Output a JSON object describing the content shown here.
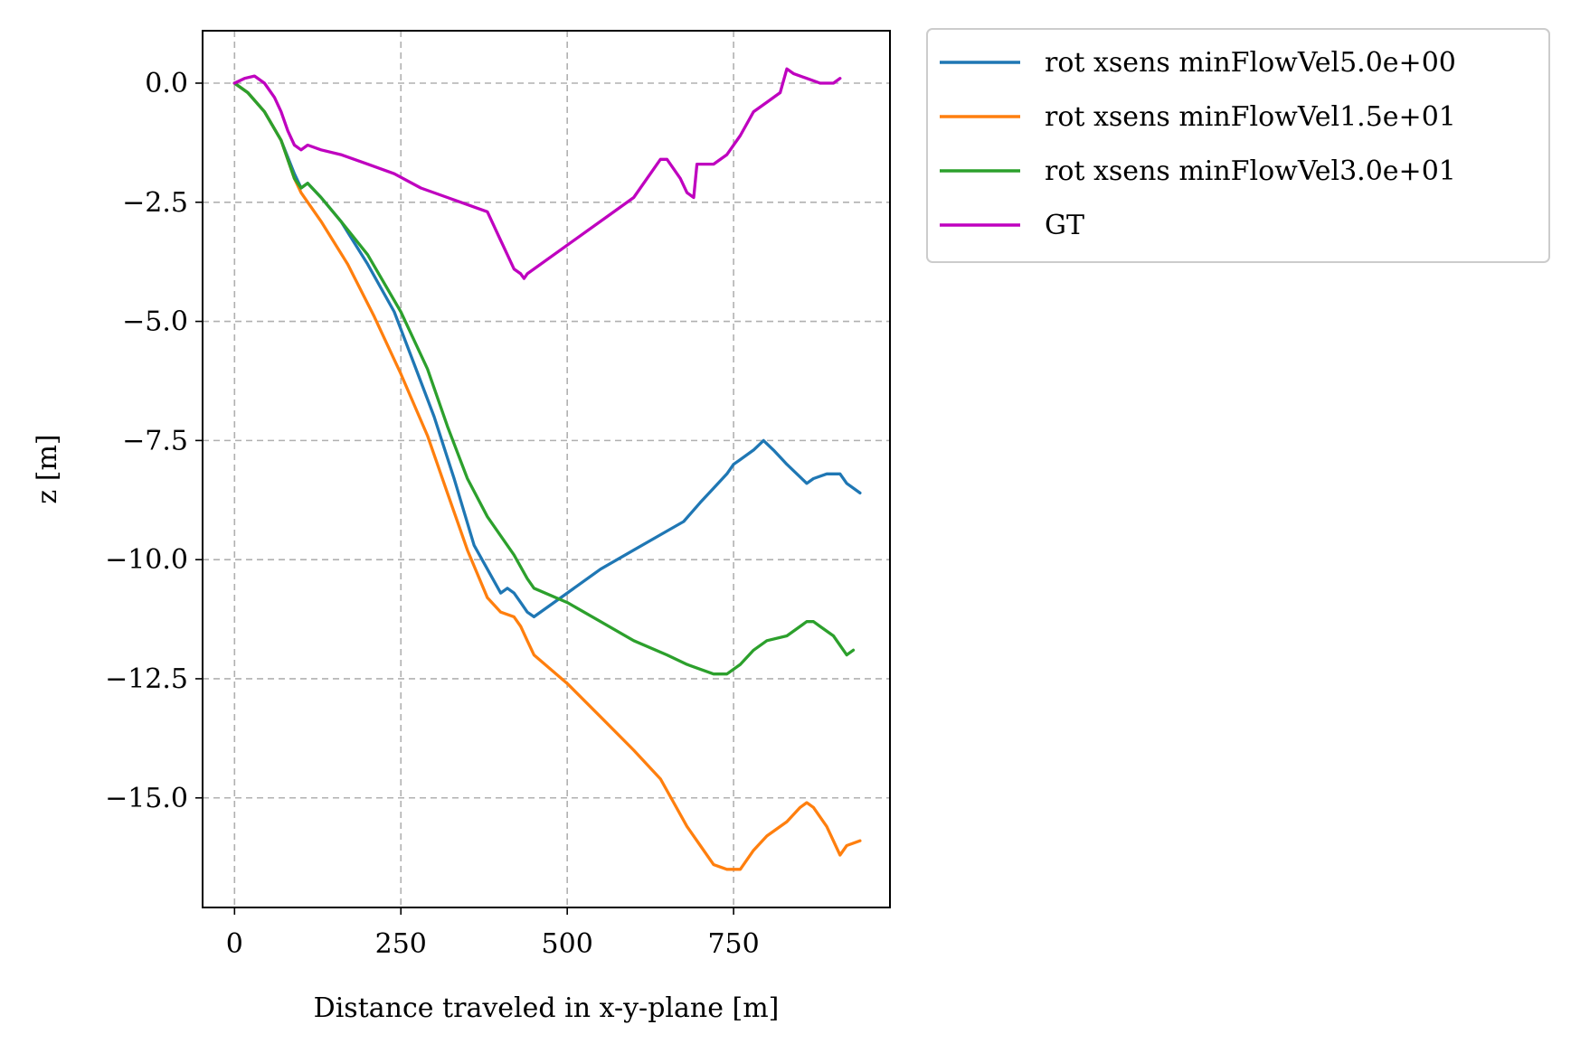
{
  "chart_data": {
    "type": "line",
    "title": "",
    "xlabel": "Distance traveled in x-y-plane [m]",
    "ylabel": "z [m]",
    "xlim": [
      -48,
      985
    ],
    "ylim": [
      -17.3,
      1.1
    ],
    "xticks": [
      0,
      250,
      500,
      750
    ],
    "xtick_labels": [
      "0",
      "250",
      "500",
      "750"
    ],
    "yticks": [
      0.0,
      -2.5,
      -5.0,
      -7.5,
      -10.0,
      -12.5,
      -15.0
    ],
    "ytick_labels": [
      "0.0",
      "−2.5",
      "−5.0",
      "−7.5",
      "−10.0",
      "−12.5",
      "−15.0"
    ],
    "grid": true,
    "legend_position": "outside-top-right",
    "series": [
      {
        "name": "rot xsens minFlowVel5.0e+00",
        "color": "#1f77b4",
        "x": [
          0,
          20,
          45,
          70,
          90,
          100,
          110,
          130,
          160,
          200,
          240,
          270,
          300,
          330,
          360,
          380,
          400,
          410,
          420,
          430,
          440,
          450,
          500,
          550,
          600,
          650,
          675,
          700,
          720,
          740,
          750,
          760,
          780,
          795,
          810,
          830,
          860,
          870,
          890,
          910,
          920,
          940
        ],
        "y": [
          0.0,
          -0.2,
          -0.6,
          -1.2,
          -1.9,
          -2.2,
          -2.1,
          -2.4,
          -2.9,
          -3.8,
          -4.8,
          -5.9,
          -7.0,
          -8.3,
          -9.7,
          -10.2,
          -10.7,
          -10.6,
          -10.7,
          -10.9,
          -11.1,
          -11.2,
          -10.7,
          -10.2,
          -9.8,
          -9.4,
          -9.2,
          -8.8,
          -8.5,
          -8.2,
          -8.0,
          -7.9,
          -7.7,
          -7.5,
          -7.7,
          -8.0,
          -8.4,
          -8.3,
          -8.2,
          -8.2,
          -8.4,
          -8.6
        ]
      },
      {
        "name": "rot xsens minFlowVel1.5e+01",
        "color": "#ff7f0e",
        "x": [
          0,
          20,
          45,
          70,
          90,
          100,
          130,
          170,
          210,
          250,
          290,
          320,
          350,
          380,
          400,
          420,
          430,
          440,
          450,
          500,
          550,
          600,
          640,
          660,
          680,
          700,
          720,
          740,
          760,
          780,
          800,
          830,
          850,
          860,
          870,
          890,
          910,
          920,
          940
        ],
        "y": [
          0.0,
          -0.2,
          -0.6,
          -1.2,
          -2.0,
          -2.3,
          -2.9,
          -3.8,
          -4.9,
          -6.1,
          -7.4,
          -8.6,
          -9.8,
          -10.8,
          -11.1,
          -11.2,
          -11.4,
          -11.7,
          -12.0,
          -12.6,
          -13.3,
          -14.0,
          -14.6,
          -15.1,
          -15.6,
          -16.0,
          -16.4,
          -16.5,
          -16.5,
          -16.1,
          -15.8,
          -15.5,
          -15.2,
          -15.1,
          -15.2,
          -15.6,
          -16.2,
          -16.0,
          -15.9
        ]
      },
      {
        "name": "rot xsens minFlowVel3.0e+01",
        "color": "#2ca02c",
        "x": [
          0,
          20,
          45,
          70,
          90,
          100,
          110,
          130,
          160,
          200,
          250,
          290,
          320,
          350,
          380,
          400,
          420,
          440,
          450,
          500,
          550,
          600,
          650,
          680,
          700,
          720,
          740,
          760,
          780,
          800,
          830,
          850,
          860,
          870,
          880,
          900,
          920,
          930
        ],
        "y": [
          0.0,
          -0.2,
          -0.6,
          -1.2,
          -2.0,
          -2.2,
          -2.1,
          -2.4,
          -2.9,
          -3.6,
          -4.8,
          -6.0,
          -7.2,
          -8.3,
          -9.1,
          -9.5,
          -9.9,
          -10.4,
          -10.6,
          -10.9,
          -11.3,
          -11.7,
          -12.0,
          -12.2,
          -12.3,
          -12.4,
          -12.4,
          -12.2,
          -11.9,
          -11.7,
          -11.6,
          -11.4,
          -11.3,
          -11.3,
          -11.4,
          -11.6,
          -12.0,
          -11.9
        ]
      },
      {
        "name": "GT",
        "color": "#bf00bf",
        "x": [
          0,
          15,
          30,
          45,
          60,
          70,
          80,
          90,
          100,
          110,
          130,
          160,
          200,
          240,
          280,
          320,
          360,
          380,
          390,
          400,
          410,
          420,
          430,
          435,
          440,
          500,
          560,
          600,
          640,
          650,
          660,
          670,
          680,
          690,
          695,
          700,
          720,
          740,
          760,
          780,
          800,
          820,
          830,
          840,
          860,
          880,
          890,
          900,
          910
        ],
        "y": [
          0.0,
          0.1,
          0.15,
          0.0,
          -0.3,
          -0.6,
          -1.0,
          -1.3,
          -1.4,
          -1.3,
          -1.4,
          -1.5,
          -1.7,
          -1.9,
          -2.2,
          -2.4,
          -2.6,
          -2.7,
          -3.0,
          -3.3,
          -3.6,
          -3.9,
          -4.0,
          -4.1,
          -4.0,
          -3.4,
          -2.8,
          -2.4,
          -1.6,
          -1.6,
          -1.8,
          -2.0,
          -2.3,
          -2.4,
          -1.7,
          -1.7,
          -1.7,
          -1.5,
          -1.1,
          -0.6,
          -0.4,
          -0.2,
          0.3,
          0.2,
          0.1,
          0.0,
          0.0,
          0.0,
          0.1
        ]
      }
    ]
  }
}
